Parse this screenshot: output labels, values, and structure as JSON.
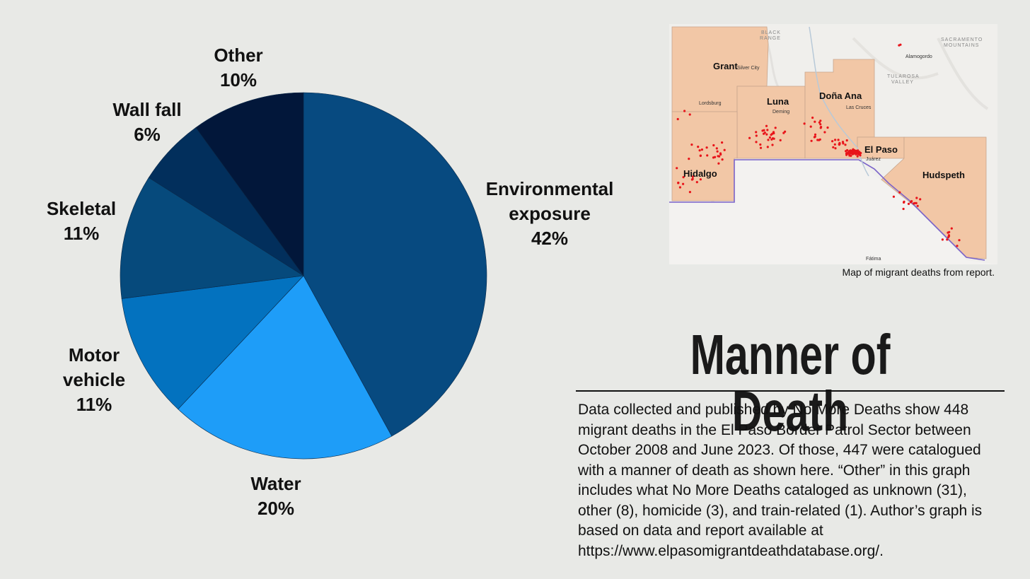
{
  "chart_data": {
    "type": "pie",
    "title": "Manner of Death",
    "slices": [
      {
        "name": "Environmental exposure",
        "label_lines": [
          "Environmental",
          "exposure",
          "42%"
        ],
        "value": 42,
        "color": "#074a80"
      },
      {
        "name": "Water",
        "label_lines": [
          "Water",
          "20%"
        ],
        "value": 20,
        "color": "#1e9df8"
      },
      {
        "name": "Motor vehicle",
        "label_lines": [
          "Motor",
          "vehicle",
          "11%"
        ],
        "value": 11,
        "color": "#0372bf"
      },
      {
        "name": "Skeletal",
        "label_lines": [
          "Skeletal",
          "11%"
        ],
        "value": 11,
        "color": "#064a7c"
      },
      {
        "name": "Wall fall",
        "label_lines": [
          "Wall fall",
          "6%"
        ],
        "value": 6,
        "color": "#022f5c"
      },
      {
        "name": "Other",
        "label_lines": [
          "Other",
          "10%"
        ],
        "value": 10,
        "color": "#02173a"
      }
    ]
  },
  "map": {
    "caption": "Map of migrant deaths from report.",
    "counties": [
      "Grant",
      "Luna",
      "Doña Ana",
      "Hidalgo",
      "El Paso",
      "Hudspeth"
    ],
    "places": [
      "Lordsburg",
      "Deming",
      "Las Cruces",
      "Juárez",
      "Alamogordo",
      "Fátima",
      "Silver City"
    ],
    "terrain": [
      "SACRAMENTO",
      "MOUNTAINS",
      "TULAROSA",
      "VALLEY",
      "BLACK",
      "RANGE"
    ],
    "colors": {
      "county_fill": "#f2c7a6",
      "death_dot": "#e8141a",
      "border_line": "#7a63c9"
    }
  },
  "title": "Manner of Death",
  "description": "Data collected and published by No More Deaths show 448 migrant deaths in the El Paso Border Patrol Sector between October 2008 and June 2023. Of those, 447 were catalogued with a manner of death as shown here. “Other” in this graph includes what No More Deaths cataloged as unknown (31), other (8), homicide (3), and train-related (1). Author’s graph is based on data and report available at https://www.elpasomigrantdeathdatabase.org/."
}
